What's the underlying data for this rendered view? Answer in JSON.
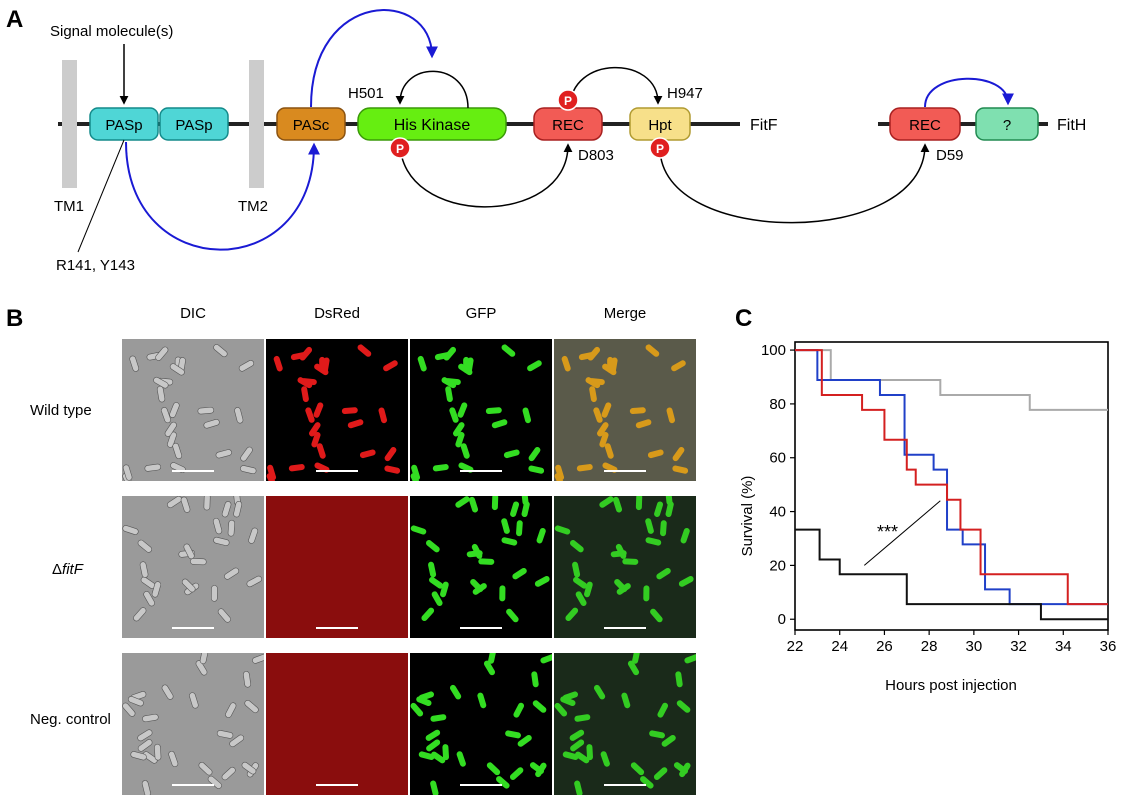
{
  "panels": {
    "a": "A",
    "b": "B",
    "c": "C"
  },
  "diagram": {
    "signal_label": "Signal molecule(s)",
    "tm1": "TM1",
    "tm2": "TM2",
    "residues": "R141, Y143",
    "domains": {
      "pasp1": "PASp",
      "pasp2": "PASp",
      "pasc": "PASc",
      "his_kinase": "His Kinase",
      "rec": "REC",
      "hpt": "Hpt",
      "fith_rec": "REC",
      "fith_unknown": "?"
    },
    "sites": {
      "h501": "H501",
      "h947": "H947",
      "d803": "D803",
      "d59": "D59"
    },
    "proteins": {
      "fitf": "FitF",
      "fith": "FitH"
    },
    "phospho": "P",
    "colors": {
      "pasp": "#4fd6d6",
      "pasc": "#d98a1f",
      "his_kinase": "#66ee11",
      "rec": "#f25b55",
      "hpt": "#f7e08a",
      "unknown": "#7fe0b0",
      "tm": "#cccccc",
      "arrow_blue": "#1a1ad4",
      "phospho": "#e02020"
    }
  },
  "micrographs": {
    "columns": [
      "DIC",
      "DsRed",
      "GFP",
      "Merge"
    ],
    "rows": [
      {
        "label": "Wild type"
      },
      {
        "label_prefix": "Δ",
        "label_italic": "fitF"
      },
      {
        "label": "Neg. control"
      }
    ]
  },
  "chart_data": {
    "type": "line",
    "xlabel": "Hours post injection",
    "ylabel": "Survival (%)",
    "xlim": [
      22,
      36
    ],
    "ylim": [
      -4,
      103
    ],
    "xticks": [
      22,
      24,
      26,
      28,
      30,
      32,
      34,
      36
    ],
    "yticks": [
      0,
      20,
      40,
      60,
      80,
      100
    ],
    "annotation": "***",
    "series": [
      {
        "color": "#aaaaaa",
        "x": [
          22,
          23.6,
          23.6,
          28.5,
          28.5,
          32.5,
          32.5,
          36
        ],
        "y": [
          100,
          100,
          88.9,
          88.9,
          83.3,
          83.3,
          77.8,
          77.8
        ]
      },
      {
        "color": "#2040c8",
        "x": [
          22,
          23,
          23,
          25.8,
          25.8,
          26.9,
          26.9,
          27.4,
          27.4,
          28.2,
          28.2,
          28.8,
          28.8,
          29.5,
          29.5,
          30.5,
          30.5,
          31.6,
          31.6,
          36
        ],
        "y": [
          100,
          100,
          88.9,
          88.9,
          83.3,
          83.3,
          61.1,
          61.1,
          61.1,
          61.1,
          55.6,
          55.6,
          33.3,
          33.3,
          27.8,
          27.8,
          11.1,
          11.1,
          5.6,
          5.6
        ]
      },
      {
        "color": "#d42020",
        "x": [
          22,
          23.2,
          23.2,
          25,
          25,
          26,
          26,
          27,
          27,
          27.4,
          27.4,
          28,
          28,
          28.8,
          28.8,
          29.4,
          29.4,
          30.3,
          30.3,
          31.2,
          31.2,
          34.2,
          34.2,
          36
        ],
        "y": [
          100,
          100,
          83.3,
          83.3,
          77.8,
          77.8,
          66.7,
          66.7,
          55.6,
          55.6,
          50,
          50,
          50,
          50,
          44.4,
          44.4,
          33.3,
          33.3,
          16.7,
          16.7,
          16.7,
          16.7,
          5.6,
          5.6
        ]
      },
      {
        "color": "#111111",
        "x": [
          22,
          23.1,
          23.1,
          24,
          24,
          27,
          27,
          33,
          33,
          36
        ],
        "y": [
          33.3,
          33.3,
          22.2,
          22.2,
          16.7,
          16.7,
          5.6,
          5.6,
          0,
          0
        ]
      }
    ]
  }
}
